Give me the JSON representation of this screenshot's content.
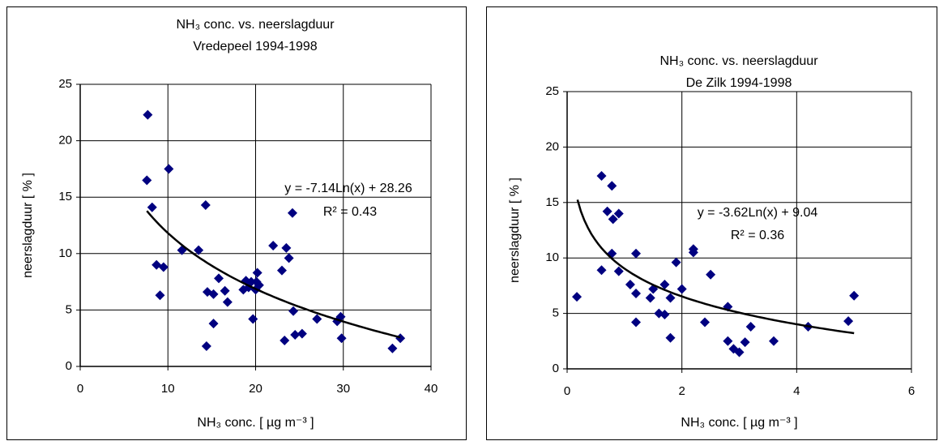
{
  "chart_data": [
    {
      "type": "scatter",
      "title": [
        "NH₃ conc. vs. neerslagduur",
        "Vredepeel 1994-1998"
      ],
      "x_label": "NH₃ conc. [ µg m⁻³ ]",
      "y_label": "neerslagduur [ % ]",
      "equation": "y = -7.14Ln(x) + 28.26",
      "r_squared": "R² = 0.43",
      "color": "#000080",
      "grid": true,
      "xlim": [
        0,
        40
      ],
      "xticks": [
        0,
        10,
        20,
        30,
        40
      ],
      "ylim": [
        0,
        25
      ],
      "yticks": [
        0,
        5,
        10,
        15,
        20,
        25
      ],
      "x": [
        7.7,
        7.6,
        8.2,
        10.1,
        8.7,
        9.5,
        9.1,
        11.6,
        13.5,
        14.3,
        14.5,
        15.2,
        15.8,
        15.2,
        14.4,
        16.5,
        16.8,
        18.6,
        18.9,
        19.5,
        19.7,
        20.1,
        20.2,
        20.4,
        20.0,
        22.0,
        23.0,
        23.5,
        23.8,
        24.2,
        23.3,
        24.3,
        24.5,
        25.3,
        27.0,
        29.3,
        29.7,
        29.8,
        35.6,
        36.5,
        19.2
      ],
      "y": [
        22.3,
        16.5,
        14.1,
        17.5,
        9.0,
        8.8,
        6.3,
        10.3,
        10.3,
        14.3,
        6.6,
        6.4,
        7.8,
        3.8,
        1.8,
        6.7,
        5.7,
        6.8,
        7.6,
        7.5,
        4.2,
        7.5,
        8.3,
        7.2,
        6.8,
        10.7,
        8.5,
        10.5,
        9.6,
        13.6,
        2.3,
        4.9,
        2.8,
        2.9,
        4.2,
        4.0,
        4.4,
        2.5,
        1.6,
        2.5,
        7.0
      ],
      "trendline": {
        "slope": -7.14,
        "intercept": 28.26,
        "x_range": [
          7.6,
          36.5
        ],
        "color": "#000000"
      }
    },
    {
      "type": "scatter",
      "title": [
        "NH₃ conc. vs. neerslagduur",
        "De Zilk 1994-1998"
      ],
      "x_label": "NH₃ conc. [ µg m⁻³ ]",
      "y_label": "neerslagduur [ % ]",
      "equation": "y = -3.62Ln(x) + 9.04",
      "r_squared": "R² = 0.36",
      "color": "#000080",
      "grid": true,
      "xlim": [
        0,
        6
      ],
      "xticks": [
        0,
        2,
        4,
        6
      ],
      "ylim": [
        0,
        25
      ],
      "yticks": [
        0,
        5,
        10,
        15,
        20,
        25
      ],
      "x": [
        0.17,
        0.6,
        0.6,
        0.7,
        0.78,
        0.8,
        0.78,
        0.9,
        0.9,
        1.1,
        1.2,
        1.2,
        1.2,
        1.45,
        1.5,
        1.6,
        1.7,
        1.7,
        1.8,
        1.8,
        1.9,
        2.0,
        2.2,
        2.2,
        2.4,
        2.5,
        2.8,
        2.8,
        2.9,
        3.0,
        3.1,
        3.2,
        3.6,
        4.2,
        4.9,
        5.0
      ],
      "y": [
        6.5,
        17.4,
        8.9,
        14.2,
        16.5,
        13.5,
        10.4,
        14.0,
        8.8,
        7.6,
        10.4,
        6.8,
        4.2,
        6.4,
        7.2,
        5.0,
        7.6,
        4.9,
        6.4,
        2.8,
        9.6,
        7.2,
        10.8,
        10.5,
        4.2,
        8.5,
        5.6,
        2.5,
        1.8,
        1.5,
        2.4,
        3.8,
        2.5,
        3.8,
        4.3,
        6.6
      ],
      "trendline": {
        "slope": -3.62,
        "intercept": 9.04,
        "x_range": [
          0.18,
          5.0
        ],
        "color": "#000000"
      }
    }
  ]
}
